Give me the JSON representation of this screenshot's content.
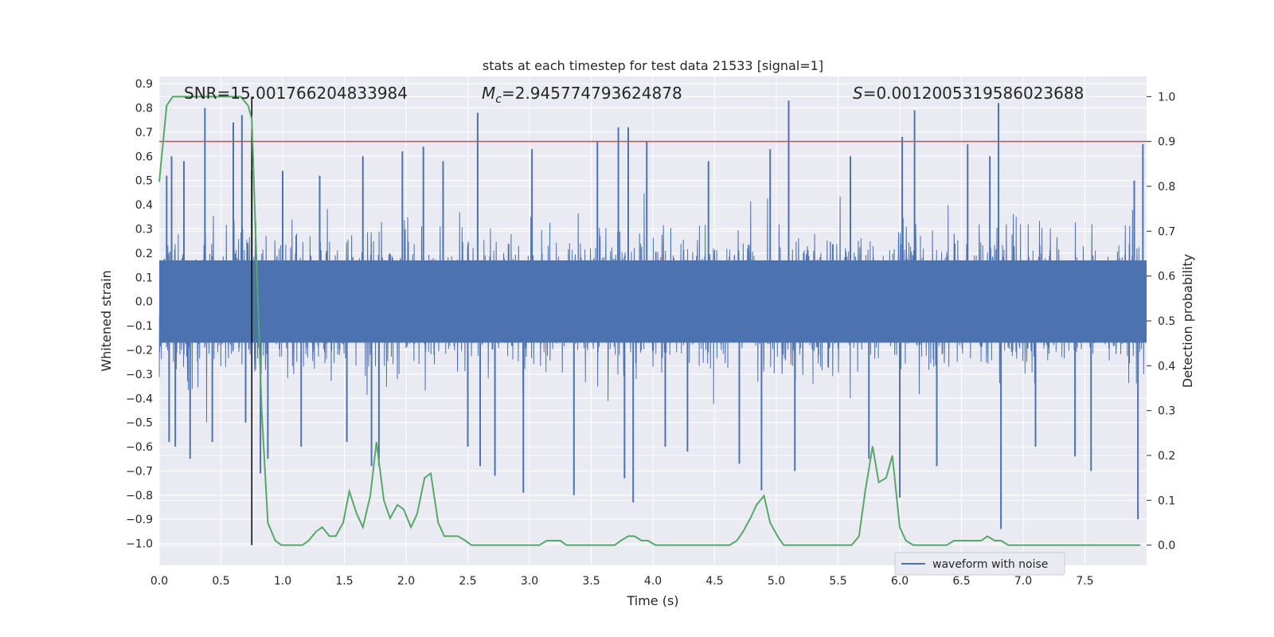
{
  "chart_data": {
    "type": "line",
    "title": "stats at each timestep for test data 21533 [signal=1]",
    "xlabel": "Time (s)",
    "ylabel": "Whitened strain",
    "y2label": "Detection probability",
    "xlim": [
      0.0,
      8.0
    ],
    "ylim": [
      -1.09,
      0.93
    ],
    "y2lim": [
      -0.045,
      1.045
    ],
    "x_ticks": [
      "0.0",
      "0.5",
      "1.0",
      "1.5",
      "2.0",
      "2.5",
      "3.0",
      "3.5",
      "4.0",
      "4.5",
      "5.0",
      "5.5",
      "6.0",
      "6.5",
      "7.0",
      "7.5"
    ],
    "y_ticks": [
      "0.9",
      "0.8",
      "0.7",
      "0.6",
      "0.5",
      "0.4",
      "0.3",
      "0.2",
      "0.1",
      "0.0",
      "−0.1",
      "−0.2",
      "−0.3",
      "−0.4",
      "−0.5",
      "−0.6",
      "−0.7",
      "−0.8",
      "−0.9",
      "−1.0"
    ],
    "y2_ticks": [
      "1.0",
      "0.9",
      "0.8",
      "0.7",
      "0.6",
      "0.5",
      "0.4",
      "0.3",
      "0.2",
      "0.1",
      "0.0"
    ],
    "grid": true,
    "legend": {
      "placement": "lower-right",
      "entries": [
        "waveform with noise"
      ]
    },
    "annotations": {
      "snr": "SNR=15.001766204833984",
      "mc_symbol": "M",
      "mc_subscript": "c",
      "mc_value": "=2.945774793624878",
      "s_symbol": "S",
      "s_value": "=0.0012005319586023688"
    },
    "threshold_y2": 0.9,
    "marker_x": 0.75,
    "series": [
      {
        "name": "waveform with noise",
        "color": "#4c72b0",
        "kind": "noise",
        "amplitude_envelope": 0.28,
        "n_samples": 4096,
        "spikes": [
          [
            0.06,
            0.52
          ],
          [
            0.08,
            -0.58
          ],
          [
            0.1,
            0.6
          ],
          [
            0.13,
            -0.6
          ],
          [
            0.2,
            0.58
          ],
          [
            0.25,
            -0.65
          ],
          [
            0.37,
            0.8
          ],
          [
            0.43,
            -0.58
          ],
          [
            0.6,
            0.74
          ],
          [
            0.67,
            0.77
          ],
          [
            0.7,
            -0.5
          ],
          [
            0.75,
            0.54
          ],
          [
            0.82,
            -0.71
          ],
          [
            0.88,
            -0.65
          ],
          [
            1.0,
            0.54
          ],
          [
            1.15,
            -0.6
          ],
          [
            1.3,
            0.52
          ],
          [
            1.52,
            -0.58
          ],
          [
            1.65,
            0.6
          ],
          [
            1.72,
            -0.68
          ],
          [
            1.78,
            -0.68
          ],
          [
            1.97,
            0.62
          ],
          [
            2.14,
            0.64
          ],
          [
            2.3,
            0.58
          ],
          [
            2.5,
            -0.6
          ],
          [
            2.58,
            0.78
          ],
          [
            2.6,
            -0.68
          ],
          [
            2.72,
            -0.72
          ],
          [
            2.95,
            -0.79
          ],
          [
            3.02,
            0.63
          ],
          [
            3.36,
            -0.8
          ],
          [
            3.55,
            0.66
          ],
          [
            3.72,
            0.72
          ],
          [
            3.77,
            -0.73
          ],
          [
            3.8,
            0.72
          ],
          [
            3.84,
            -0.83
          ],
          [
            3.95,
            0.66
          ],
          [
            4.1,
            -0.6
          ],
          [
            4.28,
            -0.62
          ],
          [
            4.45,
            0.58
          ],
          [
            4.7,
            -0.67
          ],
          [
            4.88,
            -0.78
          ],
          [
            4.95,
            0.63
          ],
          [
            5.1,
            0.83
          ],
          [
            5.15,
            -0.7
          ],
          [
            5.6,
            0.6
          ],
          [
            5.75,
            -0.65
          ],
          [
            6.0,
            -0.81
          ],
          [
            6.02,
            0.68
          ],
          [
            6.12,
            0.79
          ],
          [
            6.3,
            -0.68
          ],
          [
            6.55,
            0.65
          ],
          [
            6.73,
            0.6
          ],
          [
            6.8,
            0.82
          ],
          [
            6.82,
            -0.94
          ],
          [
            7.1,
            -0.6
          ],
          [
            7.42,
            -0.64
          ],
          [
            7.55,
            -0.7
          ],
          [
            7.9,
            0.5
          ],
          [
            7.93,
            -0.9
          ],
          [
            7.97,
            0.65
          ]
        ]
      },
      {
        "name": "",
        "color": "#55a868",
        "axis": "y2",
        "x": [
          0.0,
          0.06,
          0.11,
          0.17,
          0.22,
          0.28,
          0.33,
          0.39,
          0.44,
          0.5,
          0.55,
          0.61,
          0.66,
          0.72,
          0.75,
          0.78,
          0.83,
          0.88,
          0.94,
          0.99,
          1.05,
          1.1,
          1.16,
          1.21,
          1.27,
          1.32,
          1.38,
          1.43,
          1.49,
          1.54,
          1.6,
          1.65,
          1.71,
          1.76,
          1.82,
          1.87,
          1.93,
          1.98,
          2.04,
          2.09,
          2.15,
          2.2,
          2.26,
          2.31,
          2.37,
          2.42,
          2.48,
          2.53,
          2.59,
          2.64,
          2.7,
          2.75,
          2.81,
          2.86,
          2.92,
          2.97,
          3.03,
          3.08,
          3.14,
          3.19,
          3.25,
          3.3,
          3.36,
          3.41,
          3.47,
          3.52,
          3.58,
          3.63,
          3.69,
          3.74,
          3.8,
          3.85,
          3.91,
          3.96,
          4.02,
          4.07,
          4.13,
          4.18,
          4.24,
          4.29,
          4.35,
          4.4,
          4.46,
          4.51,
          4.57,
          4.62,
          4.68,
          4.73,
          4.79,
          4.84,
          4.9,
          4.95,
          5.01,
          5.06,
          5.12,
          5.17,
          5.23,
          5.28,
          5.34,
          5.39,
          5.45,
          5.5,
          5.56,
          5.61,
          5.67,
          5.72,
          5.78,
          5.83,
          5.89,
          5.94,
          6.0,
          6.05,
          6.11,
          6.16,
          6.22,
          6.27,
          6.33,
          6.38,
          6.44,
          6.49,
          6.55,
          6.6,
          6.66,
          6.71,
          6.77,
          6.82,
          6.88,
          6.93,
          6.99,
          7.04,
          7.1,
          7.15,
          7.21,
          7.26,
          7.32,
          7.37,
          7.43,
          7.48,
          7.54,
          7.59,
          7.65,
          7.7,
          7.76,
          7.81,
          7.87,
          7.92,
          7.95
        ],
        "values": [
          0.81,
          0.98,
          1.0,
          1.0,
          1.0,
          1.0,
          1.0,
          1.0,
          1.0,
          1.0,
          1.0,
          1.0,
          1.0,
          0.98,
          0.95,
          0.7,
          0.3,
          0.05,
          0.01,
          0.0,
          0.0,
          0.0,
          0.0,
          0.01,
          0.03,
          0.04,
          0.02,
          0.02,
          0.05,
          0.12,
          0.07,
          0.04,
          0.11,
          0.23,
          0.1,
          0.06,
          0.09,
          0.08,
          0.04,
          0.07,
          0.15,
          0.16,
          0.05,
          0.02,
          0.02,
          0.02,
          0.01,
          0.0,
          0.0,
          0.0,
          0.0,
          0.0,
          0.0,
          0.0,
          0.0,
          0.0,
          0.0,
          0.0,
          0.01,
          0.01,
          0.01,
          0.0,
          0.0,
          0.0,
          0.0,
          0.0,
          0.0,
          0.0,
          0.0,
          0.01,
          0.02,
          0.02,
          0.01,
          0.01,
          0.0,
          0.0,
          0.0,
          0.0,
          0.0,
          0.0,
          0.0,
          0.0,
          0.0,
          0.0,
          0.0,
          0.0,
          0.01,
          0.03,
          0.06,
          0.09,
          0.11,
          0.05,
          0.02,
          0.0,
          0.0,
          0.0,
          0.0,
          0.0,
          0.0,
          0.0,
          0.0,
          0.0,
          0.0,
          0.0,
          0.02,
          0.12,
          0.22,
          0.14,
          0.15,
          0.2,
          0.04,
          0.01,
          0.0,
          0.0,
          0.0,
          0.0,
          0.0,
          0.0,
          0.01,
          0.01,
          0.01,
          0.01,
          0.01,
          0.02,
          0.01,
          0.01,
          0.0,
          0.0,
          0.0,
          0.0,
          0.0,
          0.0,
          0.0,
          0.0,
          0.0,
          0.0,
          0.0,
          0.0,
          0.0,
          0.0,
          0.0,
          0.0,
          0.0,
          0.0,
          0.0,
          0.0,
          0.0
        ]
      },
      {
        "name": "",
        "color": "#c44e52",
        "axis": "y2",
        "kind": "hline",
        "value": 0.9
      }
    ]
  }
}
